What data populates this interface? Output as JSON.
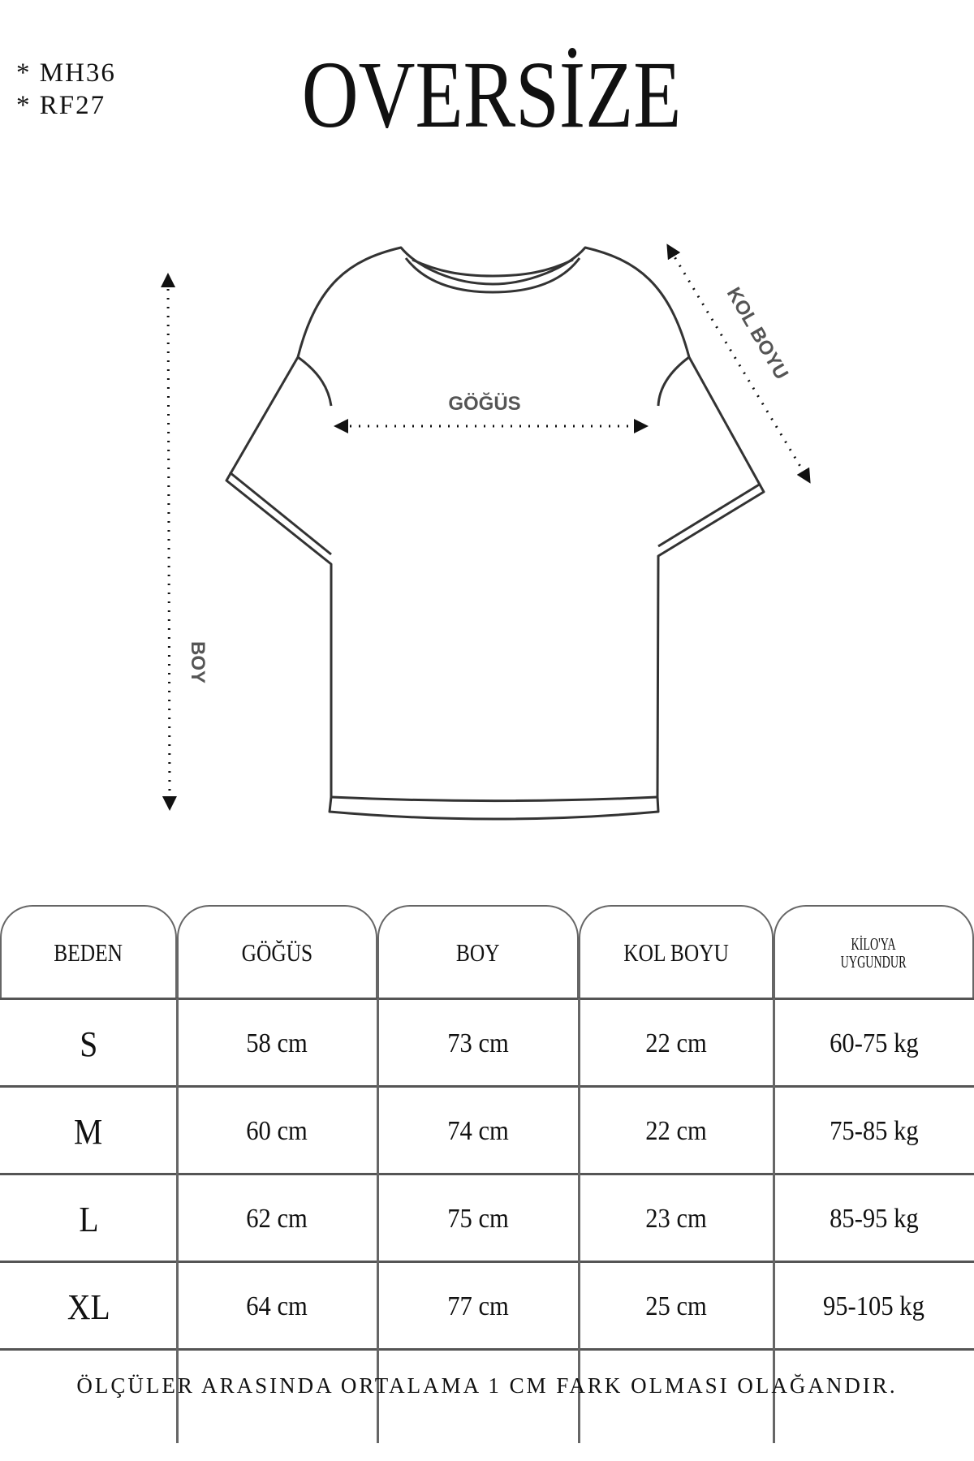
{
  "codes": [
    "* MH36",
    "* RF27"
  ],
  "title": "OVERSİZE",
  "diagram": {
    "length_label": "BOY",
    "chest_label": "GÖĞÜS",
    "sleeve_label": "KOL BOYU"
  },
  "table": {
    "headers": [
      "BEDEN",
      "GÖĞÜS",
      "BOY",
      "KOL BOYU",
      "KİLO'YA UYGUNDUR"
    ],
    "header_last_lines": [
      "KİLO'YA",
      "UYGUNDUR"
    ],
    "rows": [
      [
        "S",
        "58 cm",
        "73 cm",
        "22  cm",
        "60-75 kg"
      ],
      [
        "M",
        "60 cm",
        "74 cm",
        "22 cm",
        "75-85 kg"
      ],
      [
        "L",
        "62 cm",
        "75 cm",
        "23 cm",
        "85-95 kg"
      ],
      [
        "XL",
        "64 cm",
        "77 cm",
        "25 cm",
        "95-105 kg"
      ]
    ]
  },
  "footer": "ÖLÇÜLER ARASINDA ORTALAMA 1 CM FARK OLMASI OLAĞANDIR."
}
